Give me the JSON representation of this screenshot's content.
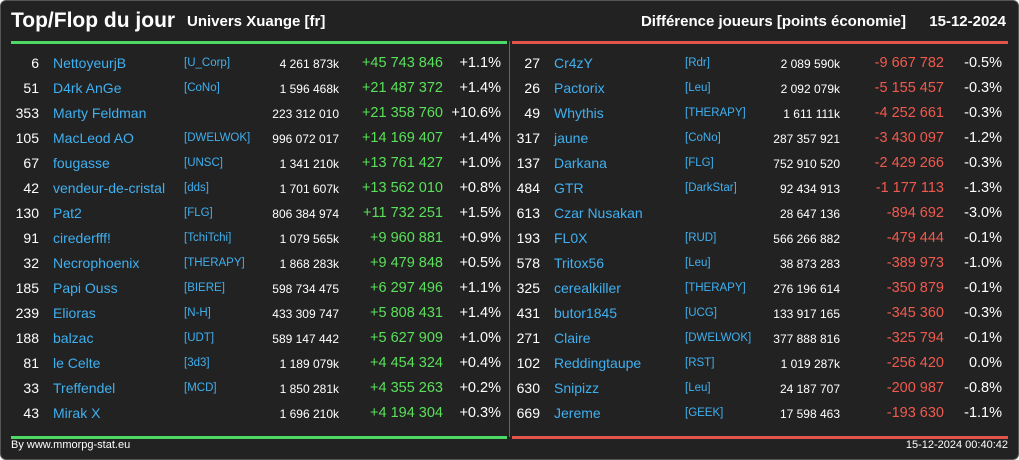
{
  "header": {
    "title": "Top/Flop du jour",
    "universe": "Univers Xuange [fr]",
    "diff_label": "Différence joueurs [points économie]",
    "date": "15-12-2024"
  },
  "colors": {
    "top_accent": "#4cd964",
    "flop_accent": "#e0544a",
    "link": "#3fb0f0"
  },
  "top": [
    {
      "rank": "6",
      "name": "NettoyeurjB",
      "ally": "[U_Corp]",
      "points": "4 261 873k",
      "delta": "+45 743 846",
      "pct": "+1.1%"
    },
    {
      "rank": "51",
      "name": "D4rk AnGe",
      "ally": "[CoNo]",
      "points": "1 596 468k",
      "delta": "+21 487 372",
      "pct": "+1.4%"
    },
    {
      "rank": "353",
      "name": "Marty Feldman",
      "ally": "",
      "points": "223 312 010",
      "delta": "+21 358 760",
      "pct": "+10.6%"
    },
    {
      "rank": "105",
      "name": "MacLeod AO",
      "ally": "[DWELWOK]",
      "points": "996 072 017",
      "delta": "+14 169 407",
      "pct": "+1.4%"
    },
    {
      "rank": "67",
      "name": "fougasse",
      "ally": "[UNSC]",
      "points": "1 341 210k",
      "delta": "+13 761 427",
      "pct": "+1.0%"
    },
    {
      "rank": "42",
      "name": "vendeur-de-cristal",
      "ally": "[dds]",
      "points": "1 701 607k",
      "delta": "+13 562 010",
      "pct": "+0.8%"
    },
    {
      "rank": "130",
      "name": "Pat2",
      "ally": "[FLG]",
      "points": "806 384 974",
      "delta": "+11 732 251",
      "pct": "+1.5%"
    },
    {
      "rank": "91",
      "name": "cirederfff!",
      "ally": "[TchiTchi]",
      "points": "1 079 565k",
      "delta": "+9 960 881",
      "pct": "+0.9%"
    },
    {
      "rank": "32",
      "name": "Necrophoenix",
      "ally": "[THERAPY]",
      "points": "1 868 283k",
      "delta": "+9 479 848",
      "pct": "+0.5%"
    },
    {
      "rank": "185",
      "name": "Papi Ouss",
      "ally": "[BIERE]",
      "points": "598 734 475",
      "delta": "+6 297 496",
      "pct": "+1.1%"
    },
    {
      "rank": "239",
      "name": "Elioras",
      "ally": "[N-H]",
      "points": "433 309 747",
      "delta": "+5 808 431",
      "pct": "+1.4%"
    },
    {
      "rank": "188",
      "name": "balzac",
      "ally": "[UDT]",
      "points": "589 147 442",
      "delta": "+5 627 909",
      "pct": "+1.0%"
    },
    {
      "rank": "81",
      "name": "le Celte",
      "ally": "[3d3]",
      "points": "1 189 079k",
      "delta": "+4 454 324",
      "pct": "+0.4%"
    },
    {
      "rank": "33",
      "name": "Treffendel",
      "ally": "[MCD]",
      "points": "1 850 281k",
      "delta": "+4 355 263",
      "pct": "+0.2%"
    },
    {
      "rank": "43",
      "name": "Mirak X",
      "ally": "",
      "points": "1 696 210k",
      "delta": "+4 194 304",
      "pct": "+0.3%"
    }
  ],
  "flop": [
    {
      "rank": "27",
      "name": "Cr4zY",
      "ally": "[Rdr]",
      "points": "2 089 590k",
      "delta": "-9 667 782",
      "pct": "-0.5%"
    },
    {
      "rank": "26",
      "name": "Pactorix",
      "ally": "[Leu]",
      "points": "2 092 079k",
      "delta": "-5 155 457",
      "pct": "-0.3%"
    },
    {
      "rank": "49",
      "name": "Whythis",
      "ally": "[THERAPY]",
      "points": "1 611 111k",
      "delta": "-4 252 661",
      "pct": "-0.3%"
    },
    {
      "rank": "317",
      "name": "jaune",
      "ally": "[CoNo]",
      "points": "287 357 921",
      "delta": "-3 430 097",
      "pct": "-1.2%"
    },
    {
      "rank": "137",
      "name": "Darkana",
      "ally": "[FLG]",
      "points": "752 910 520",
      "delta": "-2 429 266",
      "pct": "-0.3%"
    },
    {
      "rank": "484",
      "name": "GTR",
      "ally": "[DarkStar]",
      "points": "92 434 913",
      "delta": "-1 177 113",
      "pct": "-1.3%"
    },
    {
      "rank": "613",
      "name": "Czar Nusakan",
      "ally": "",
      "points": "28 647 136",
      "delta": "-894 692",
      "pct": "-3.0%"
    },
    {
      "rank": "193",
      "name": "FL0X",
      "ally": "[RUD]",
      "points": "566 266 882",
      "delta": "-479 444",
      "pct": "-0.1%"
    },
    {
      "rank": "578",
      "name": "Tritox56",
      "ally": "[Leu]",
      "points": "38 873 283",
      "delta": "-389 973",
      "pct": "-1.0%"
    },
    {
      "rank": "325",
      "name": "cerealkiller",
      "ally": "[THERAPY]",
      "points": "276 196 614",
      "delta": "-350 879",
      "pct": "-0.1%"
    },
    {
      "rank": "431",
      "name": "butor1845",
      "ally": "[UCG]",
      "points": "133 917 165",
      "delta": "-345 360",
      "pct": "-0.3%"
    },
    {
      "rank": "271",
      "name": "Claire",
      "ally": "[DWELWOK]",
      "points": "377 888 816",
      "delta": "-325 794",
      "pct": "-0.1%"
    },
    {
      "rank": "102",
      "name": "Reddingtaupe",
      "ally": "[RST]",
      "points": "1 019 287k",
      "delta": "-256 420",
      "pct": "0.0%"
    },
    {
      "rank": "630",
      "name": "Snipizz",
      "ally": "[Leu]",
      "points": "24 187 707",
      "delta": "-200 987",
      "pct": "-0.8%"
    },
    {
      "rank": "669",
      "name": "Jereme",
      "ally": "[GEEK]",
      "points": "17 598 463",
      "delta": "-193 630",
      "pct": "-1.1%"
    }
  ],
  "footer": {
    "credit": "By www.mmorpg-stat.eu",
    "timestamp": "15-12-2024 00:40:42"
  }
}
